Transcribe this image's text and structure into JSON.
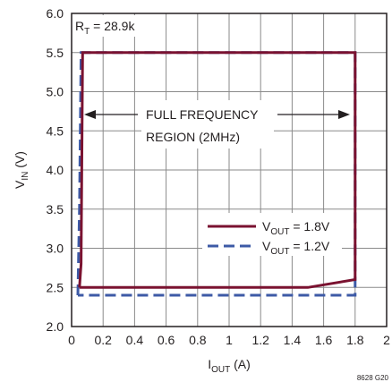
{
  "chart_data": {
    "type": "line",
    "x_axis": {
      "label_main": "I",
      "label_sub": "OUT",
      "label_unit": " (A)",
      "range": [
        0,
        2
      ],
      "ticks": [
        0,
        0.2,
        0.4,
        0.6,
        0.8,
        1,
        1.2,
        1.4,
        1.6,
        1.8,
        2
      ],
      "tick_labels": [
        "0",
        "0.2",
        "0.4",
        "0.6",
        "0.8",
        "1",
        "1.2",
        "1.4",
        "1.6",
        "1.8",
        "2"
      ]
    },
    "y_axis": {
      "label_main": "V",
      "label_sub": "IN",
      "label_unit": " (V)",
      "range": [
        2.0,
        6.0
      ],
      "ticks": [
        2.0,
        2.5,
        3.0,
        3.5,
        4.0,
        4.5,
        5.0,
        5.5,
        6.0
      ],
      "tick_labels": [
        "2.0",
        "2.5",
        "3.0",
        "3.5",
        "4.0",
        "4.5",
        "5.0",
        "5.5",
        "6.0"
      ]
    },
    "grid": true,
    "series": [
      {
        "name_main": "V",
        "name_sub": "OUT",
        "name_value": " = 1.8V",
        "color": "#7a1230",
        "dash": "solid",
        "points": [
          [
            0.05,
            2.5
          ],
          [
            0.06,
            2.8
          ],
          [
            0.07,
            5.5
          ],
          [
            1.8,
            5.5
          ],
          [
            1.8,
            2.6
          ],
          [
            1.5,
            2.5
          ],
          [
            0.05,
            2.5
          ]
        ]
      },
      {
        "name_main": "V",
        "name_sub": "OUT",
        "name_value": " = 1.2V",
        "color": "#3d5aa6",
        "dash": "dashed",
        "points": [
          [
            0.04,
            2.4
          ],
          [
            0.05,
            3.5
          ],
          [
            0.06,
            5.5
          ],
          [
            1.8,
            5.5
          ],
          [
            1.8,
            2.4
          ],
          [
            0.04,
            2.4
          ]
        ]
      }
    ],
    "legend_position": "lower-right",
    "annotations": {
      "rt_main": "R",
      "rt_sub": "T",
      "rt_value": " = 28.9k",
      "region_line1": "FULL FREQUENCY",
      "region_line2": "REGION (2MHz)",
      "figure_code": "8628 G20"
    }
  }
}
